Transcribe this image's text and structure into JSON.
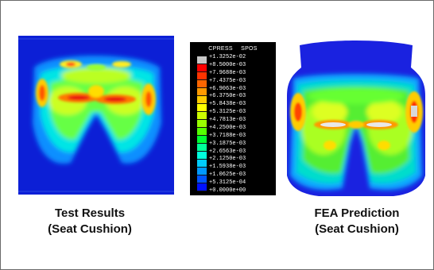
{
  "legend": {
    "title_left": "CPRESS",
    "title_right": "SPOS",
    "labels": [
      "+1.3252e-02",
      "+8.5000e-03",
      "+7.9688e-03",
      "+7.4375e-03",
      "+6.9063e-03",
      "+6.3750e-03",
      "+5.8438e-03",
      "+5.3125e-03",
      "+4.7813e-03",
      "+4.2500e-03",
      "+3.7188e-03",
      "+3.1875e-03",
      "+2.6563e-03",
      "+2.1250e-03",
      "+1.5938e-03",
      "+1.0625e-03",
      "+5.3125e-04",
      "+0.0000e+00"
    ],
    "colors": [
      "#c8c8c8",
      "#ff0000",
      "#ff3300",
      "#ff6600",
      "#ff9900",
      "#ffcc00",
      "#ffff00",
      "#ccff00",
      "#99ff00",
      "#55ff00",
      "#00ff33",
      "#00ff99",
      "#00ffdd",
      "#00ccff",
      "#0099ff",
      "#0055ff",
      "#0011ff"
    ]
  },
  "captions": {
    "test": {
      "line1": "Test Results",
      "line2": "(Seat Cushion)"
    },
    "fea": {
      "line1": "FEA Prediction",
      "line2": "(Seat Cushion)"
    }
  }
}
